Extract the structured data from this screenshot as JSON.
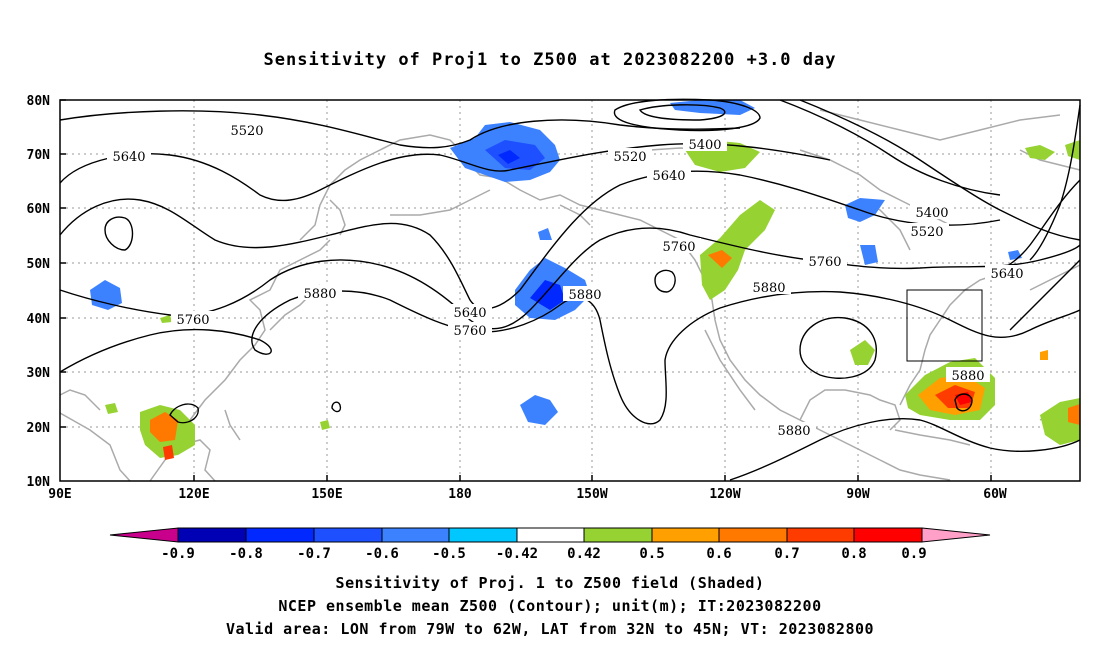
{
  "title": "Sensitivity of Proj1 to Z500 at 2023082200 +3.0 day",
  "map": {
    "lat_labels": [
      "80N",
      "70N",
      "60N",
      "50N",
      "40N",
      "30N",
      "20N",
      "10N"
    ],
    "lon_labels": [
      "90E",
      "120E",
      "150E",
      "180",
      "150W",
      "120W",
      "90W",
      "60W"
    ],
    "contour_labels": [
      {
        "text": "5520"
      },
      {
        "text": "5640"
      },
      {
        "text": "5400"
      },
      {
        "text": "5520"
      },
      {
        "text": "5640"
      },
      {
        "text": "5400"
      },
      {
        "text": "5520"
      },
      {
        "text": "5880"
      },
      {
        "text": "5760"
      },
      {
        "text": "5640"
      },
      {
        "text": "5760"
      },
      {
        "text": "5880"
      },
      {
        "text": "5760"
      },
      {
        "text": "5760"
      },
      {
        "text": "5880"
      },
      {
        "text": "5640"
      },
      {
        "text": "5880"
      },
      {
        "text": "5880"
      }
    ]
  },
  "colorbar": {
    "labels": [
      "-0.9",
      "-0.8",
      "-0.7",
      "-0.6",
      "-0.5",
      "-0.42",
      "0.42",
      "0.5",
      "0.6",
      "0.7",
      "0.8",
      "0.9"
    ],
    "colors": [
      "#c8008c",
      "#0000b4",
      "#0028ff",
      "#1e50ff",
      "#3c82ff",
      "#00c8ff",
      "#ffffff",
      "#96d232",
      "#ffa000",
      "#ff7800",
      "#ff3c00",
      "#ff0000",
      "#ffa0c8"
    ]
  },
  "captions": [
    "Sensitivity of Proj. 1 to Z500 field (Shaded)",
    "NCEP ensemble mean Z500 (Contour); unit(m); IT:2023082200",
    "Valid area: LON from 79W to 62W, LAT from 32N to 45N; VT: 2023082800"
  ]
}
